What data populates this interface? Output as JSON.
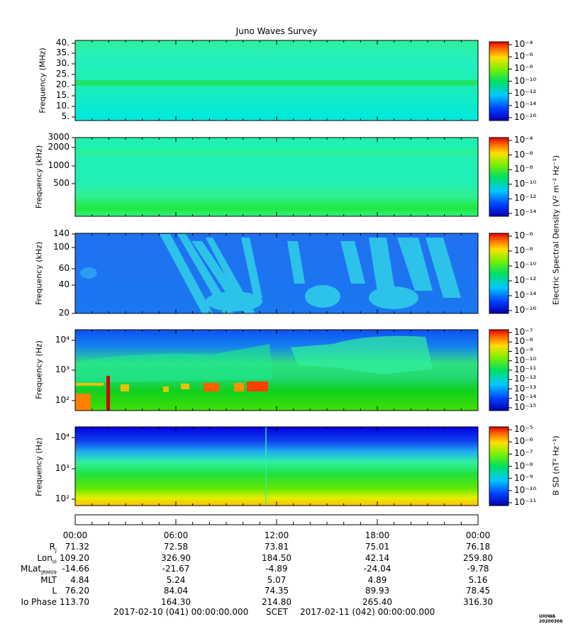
{
  "title": "Juno Waves Survey",
  "colorbar_labels": {
    "electric": "Electric Spectral Density (V² m⁻² Hz⁻¹)",
    "magnetic": "B SD (nT² Hz⁻¹)"
  },
  "chart_data": [
    {
      "type": "heatmap",
      "panel": 1,
      "ylabel": "Frequency (MHz)",
      "yticks": [
        "40.",
        "35.",
        "30.",
        "25.",
        "20.",
        "15.",
        "10.",
        "5."
      ],
      "ylim": [
        3.5,
        41
      ],
      "colorbar_ticks": [
        "10⁻⁴",
        "10⁻⁶",
        "10⁻⁸",
        "10⁻¹⁰",
        "10⁻¹²",
        "10⁻¹⁴",
        "10⁻¹⁶"
      ],
      "notes": "uniform cyan background with a green band near 21 MHz"
    },
    {
      "type": "heatmap",
      "panel": 2,
      "ylabel": "Frequency (kHz)",
      "yticks": [
        "3000",
        "2000",
        "1000",
        "500"
      ],
      "colorbar_ticks": [
        "10⁻⁴",
        "10⁻⁶",
        "10⁻⁸",
        "10⁻¹⁰",
        "10⁻¹²",
        "10⁻¹⁴"
      ]
    },
    {
      "type": "heatmap",
      "panel": 3,
      "ylabel": "Frequency (kHz)",
      "yticks": [
        "140",
        "100",
        "60",
        "40",
        "20"
      ],
      "colorbar_ticks": [
        "10⁻⁶",
        "10⁻⁸",
        "10⁻¹⁰",
        "10⁻¹²",
        "10⁻¹⁴",
        "10⁻¹⁶"
      ]
    },
    {
      "type": "heatmap",
      "panel": 4,
      "ylabel": "Frequency (Hz)",
      "yticks": [
        "10⁴",
        "10³",
        "10²"
      ],
      "colorbar_ticks": [
        "10⁻⁷",
        "10⁻⁸",
        "10⁻⁹",
        "10⁻¹⁰",
        "10⁻¹¹",
        "10⁻¹²",
        "10⁻¹³",
        "10⁻¹⁴",
        "10⁻¹⁵"
      ]
    },
    {
      "type": "heatmap",
      "panel": 5,
      "ylabel": "Frequency (Hz)",
      "yticks": [
        "10⁴",
        "10³",
        "10²"
      ],
      "colorbar_ticks": [
        "10⁻⁵",
        "10⁻⁶",
        "10⁻⁷",
        "10⁻⁸",
        "10⁻⁹",
        "10⁻¹⁰",
        "10⁻¹¹"
      ]
    }
  ],
  "time_ticks": [
    "00:00",
    "06:00",
    "12:00",
    "18:00",
    "00:00"
  ],
  "ephemeris": [
    {
      "label": "R",
      "sub": "J",
      "values": [
        "71.32",
        "72.58",
        "73.81",
        "75.01",
        "76.18"
      ]
    },
    {
      "label": "Lon",
      "sub": "III",
      "values": [
        "109.20",
        "326.90",
        "184.50",
        "42.14",
        "259.80"
      ]
    },
    {
      "label": "MLat",
      "sub": "JRM09",
      "values": [
        "-14.66",
        "-21.67",
        "-4.89",
        "-24.04",
        "-9.78"
      ]
    },
    {
      "label": "MLT",
      "sub": "",
      "values": [
        "4.84",
        "5.24",
        "5.07",
        "4.89",
        "5.16"
      ]
    },
    {
      "label": "L",
      "sub": "",
      "values": [
        "76.20",
        "84.04",
        "74.35",
        "89.93",
        "78.45"
      ]
    },
    {
      "label": "Io Phase",
      "sub": "",
      "values": [
        "113.70",
        "164.30",
        "214.80",
        "265.40",
        "316.30"
      ]
    }
  ],
  "time_range": {
    "start": "2017-02-10 (041) 00:00:00.000",
    "scet": "SCET",
    "end": "2017-02-11 (042) 00:00:00.000"
  },
  "credit": "UIOWA 20200306"
}
